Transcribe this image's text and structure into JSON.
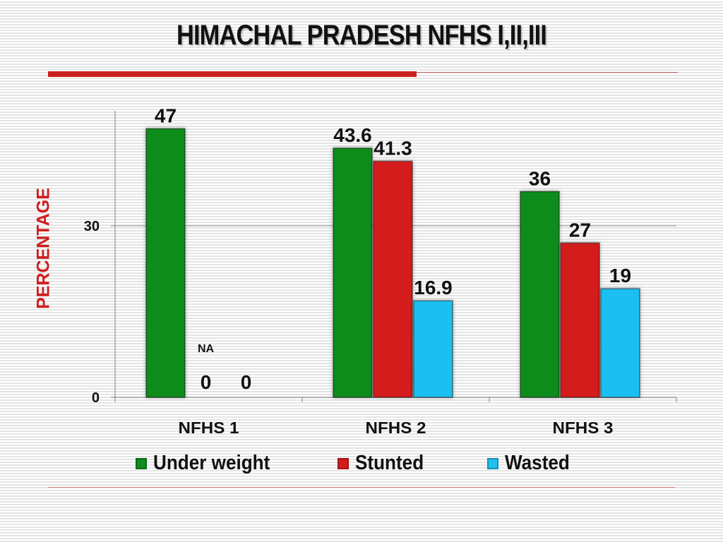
{
  "slide": {
    "title": "HIMACHAL PRADESH NFHS I,II,III"
  },
  "chart_data": {
    "type": "bar",
    "categories": [
      "NFHS 1",
      "NFHS 2",
      "NFHS 3"
    ],
    "series": [
      {
        "name": "Under weight",
        "values": [
          47,
          43.6,
          36
        ],
        "color": "#0f8c1f"
      },
      {
        "name": "Stunted",
        "values": [
          0,
          41.3,
          27
        ],
        "color": "#d41c1c"
      },
      {
        "name": "Wasted",
        "values": [
          0,
          16.9,
          19
        ],
        "color": "#1ec0f0"
      }
    ],
    "data_labels": [
      [
        "47",
        "0",
        "0"
      ],
      [
        "43.6",
        "41.3",
        "16.9"
      ],
      [
        "36",
        "27",
        "19"
      ]
    ],
    "annotation": "NA",
    "ylabel": "PERCENTAGE",
    "xlabel": "",
    "yticks": [
      0,
      30
    ],
    "ylim": [
      0,
      50
    ],
    "grid": true,
    "legend_position": "bottom"
  }
}
